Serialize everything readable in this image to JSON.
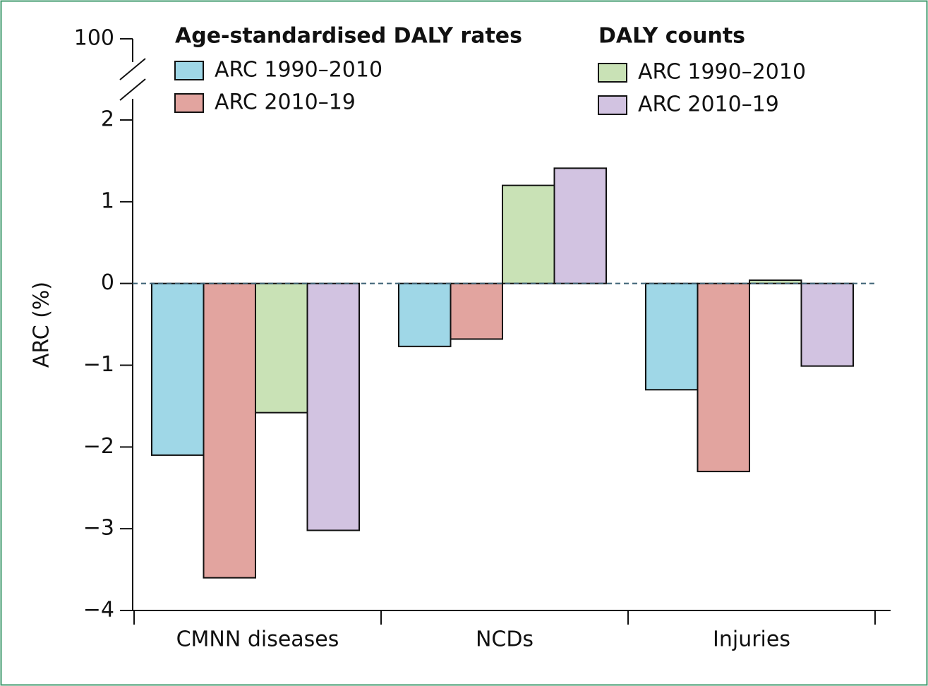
{
  "chart_data": {
    "type": "bar",
    "y_label": "ARC (%)",
    "legend_titles": [
      "Age-standardised DALY rates",
      "DALY counts"
    ],
    "categories": [
      "CMNN diseases",
      "NCDs",
      "Injuries"
    ],
    "series": [
      {
        "name": "ARC 1990–2010",
        "color": "#9fd7e7",
        "values": [
          -2.1,
          -0.77,
          -1.3
        ]
      },
      {
        "name": "ARC 2010–19",
        "color": "#e2a49f",
        "values": [
          -3.6,
          -0.68,
          -2.3
        ]
      },
      {
        "name": "ARC 1990–2010",
        "color": "#c9e2b6",
        "values": [
          -1.58,
          1.2,
          0.04
        ]
      },
      {
        "name": "ARC 2010–19",
        "color": "#d2c3e1",
        "values": [
          -3.02,
          1.41,
          -1.01
        ]
      }
    ],
    "ylim": [
      -4,
      2
    ],
    "yticks": [
      {
        "value": -4,
        "label": "−4"
      },
      {
        "value": -3,
        "label": "−3"
      },
      {
        "value": -2,
        "label": "−2"
      },
      {
        "value": -1,
        "label": "−1"
      },
      0,
      1,
      2
    ],
    "break_tick": 100,
    "zero_line": "dashed"
  }
}
